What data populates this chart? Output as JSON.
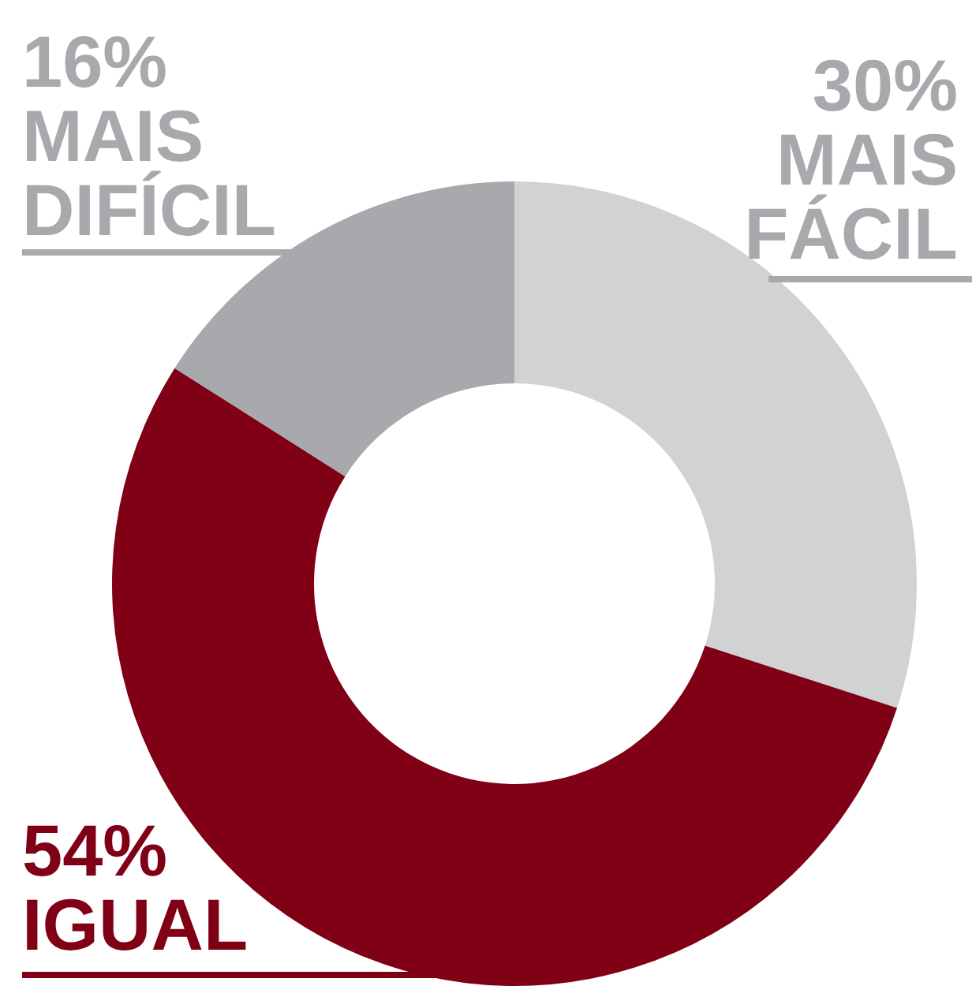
{
  "chart_data": {
    "type": "donut",
    "categories": [
      "MAIS FÁCIL",
      "IGUAL",
      "MAIS DIFÍCIL"
    ],
    "values": [
      30,
      54,
      16
    ],
    "value_labels": [
      "30%",
      "54%",
      "16%"
    ],
    "colors": [
      "#d1d2d4",
      "#800016",
      "#a7a9ac"
    ]
  }
}
